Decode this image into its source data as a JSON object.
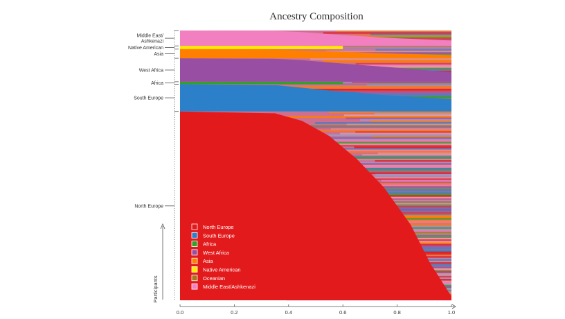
{
  "chart_data": {
    "type": "area",
    "title": "Ancestry Composition",
    "xlabel": "",
    "ylabel": "Participants",
    "xlim": [
      0.0,
      1.0
    ],
    "x_ticks": [
      "0.0",
      "0.2",
      "0.4",
      "0.6",
      "0.8",
      "1.0"
    ],
    "grid": false,
    "legend_position": "bottom-left",
    "categories": [
      {
        "name": "North Europe",
        "color": "#e31a1c"
      },
      {
        "name": "South Europe",
        "color": "#2c7fc9"
      },
      {
        "name": "Africa",
        "color": "#33a02c"
      },
      {
        "name": "West Africa",
        "color": "#984ea3"
      },
      {
        "name": "Asia",
        "color": "#ff7f00"
      },
      {
        "name": "Native American",
        "color": "#ffea00"
      },
      {
        "name": "Oceanian",
        "color": "#a6761d"
      },
      {
        "name": "Middle East/Ashkenazi",
        "color": "#f27fbf"
      }
    ],
    "participant_groups": [
      {
        "label": "Middle East/\nAshkenazi",
        "color": "#f27fbf",
        "share": 0.057
      },
      {
        "label": "Native American",
        "color": "#ffea00",
        "share": 0.012
      },
      {
        "label": "Asia",
        "color": "#ff7f00",
        "share": 0.034
      },
      {
        "label": "West Africa",
        "color": "#984ea3",
        "share": 0.087
      },
      {
        "label": "Africa",
        "color": "#33a02c",
        "share": 0.009
      },
      {
        "label": "South Europe",
        "color": "#2c7fc9",
        "share": 0.101
      },
      {
        "label": "North Europe",
        "color": "#e31a1c",
        "share": 0.7
      }
    ],
    "dominant_fraction_curves": [
      {
        "group": "Middle East/Ashkenazi",
        "points": [
          [
            0.0,
            1.0
          ],
          [
            0.35,
            0.98
          ],
          [
            0.45,
            0.9
          ],
          [
            0.6,
            0.7
          ],
          [
            0.8,
            0.5
          ],
          [
            1.0,
            0.35
          ]
        ]
      },
      {
        "group": "Asia",
        "points": [
          [
            0.0,
            1.0
          ],
          [
            0.3,
            0.98
          ],
          [
            0.4,
            0.9
          ],
          [
            0.55,
            0.75
          ],
          [
            0.75,
            0.55
          ],
          [
            1.0,
            0.35
          ]
        ]
      },
      {
        "group": "West Africa",
        "points": [
          [
            0.0,
            1.0
          ],
          [
            0.35,
            0.98
          ],
          [
            0.45,
            0.92
          ],
          [
            0.55,
            0.82
          ],
          [
            0.65,
            0.73
          ],
          [
            0.8,
            0.6
          ],
          [
            1.0,
            0.4
          ]
        ]
      },
      {
        "group": "South Europe",
        "points": [
          [
            0.0,
            1.0
          ],
          [
            0.35,
            0.97
          ],
          [
            0.45,
            0.87
          ],
          [
            0.55,
            0.77
          ],
          [
            0.65,
            0.7
          ],
          [
            0.75,
            0.6
          ],
          [
            1.0,
            0.45
          ]
        ]
      },
      {
        "group": "North Europe",
        "points": [
          [
            0.0,
            1.0
          ],
          [
            0.35,
            0.99
          ],
          [
            0.45,
            0.95
          ],
          [
            0.55,
            0.87
          ],
          [
            0.65,
            0.75
          ],
          [
            0.75,
            0.6
          ],
          [
            0.85,
            0.4
          ],
          [
            0.92,
            0.2
          ],
          [
            1.0,
            0.02
          ]
        ]
      }
    ]
  }
}
